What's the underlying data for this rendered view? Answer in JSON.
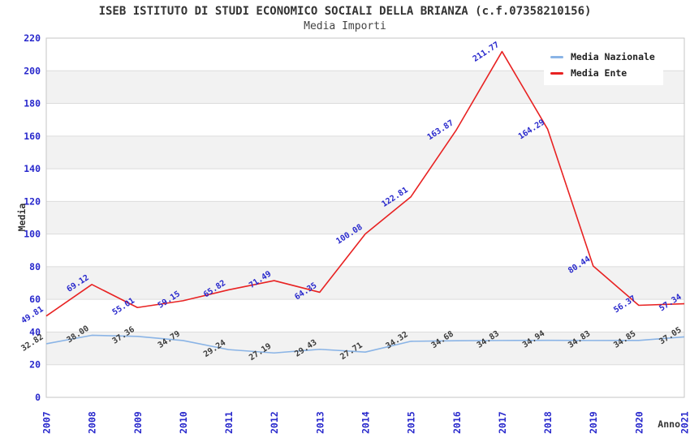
{
  "header": {
    "title": "ISEB ISTITUTO DI STUDI ECONOMICO SOCIALI DELLA BRIANZA (c.f.07358210156)",
    "subtitle": "Media Importi"
  },
  "axes": {
    "y_label": "Media",
    "x_label": "Anno",
    "y_ticks": [
      0,
      20,
      40,
      60,
      80,
      100,
      120,
      140,
      160,
      180,
      200,
      220
    ],
    "x_years": [
      "2007",
      "2008",
      "2009",
      "2010",
      "2011",
      "2012",
      "2013",
      "2014",
      "2015",
      "2016",
      "2017",
      "2018",
      "2019",
      "2020",
      "2021"
    ]
  },
  "legend": {
    "items": [
      {
        "label": "Media Nazionale"
      },
      {
        "label": "Media Ente"
      }
    ]
  },
  "colors": {
    "band": "#f2f2f2",
    "grid": "#dcdcdc",
    "plot_border": "#c6c6c6",
    "tick_text": "#2828cc",
    "axis_text": "#333333"
  },
  "chart_data": {
    "type": "line",
    "title": "ISEB ISTITUTO DI STUDI ECONOMICO SOCIALI DELLA BRIANZA (c.f.07358210156)",
    "subtitle": "Media Importi",
    "xlabel": "Anno",
    "ylabel": "Media",
    "ylim": [
      0,
      220
    ],
    "y_tick_step": 20,
    "grid": "horizontal bands, alternating white/gray every 20 units",
    "legend_position": "top-right inside plot",
    "x": [
      2007,
      2008,
      2009,
      2010,
      2011,
      2012,
      2013,
      2014,
      2015,
      2016,
      2017,
      2018,
      2019,
      2020,
      2021
    ],
    "series": [
      {
        "name": "Media Nazionale",
        "color": "#8ab4e6",
        "label_color": "#3a3a3a",
        "values": [
          32.82,
          38.0,
          37.36,
          34.79,
          29.24,
          27.19,
          29.43,
          27.71,
          34.32,
          34.68,
          34.83,
          34.94,
          34.83,
          34.85,
          37.05
        ]
      },
      {
        "name": "Media Ente",
        "color": "#e82222",
        "label_color": "#2828cc",
        "values": [
          49.81,
          69.12,
          55.01,
          59.15,
          65.82,
          71.49,
          64.35,
          100.08,
          122.81,
          163.87,
          211.77,
          164.29,
          80.44,
          56.37,
          57.34
        ]
      }
    ]
  }
}
